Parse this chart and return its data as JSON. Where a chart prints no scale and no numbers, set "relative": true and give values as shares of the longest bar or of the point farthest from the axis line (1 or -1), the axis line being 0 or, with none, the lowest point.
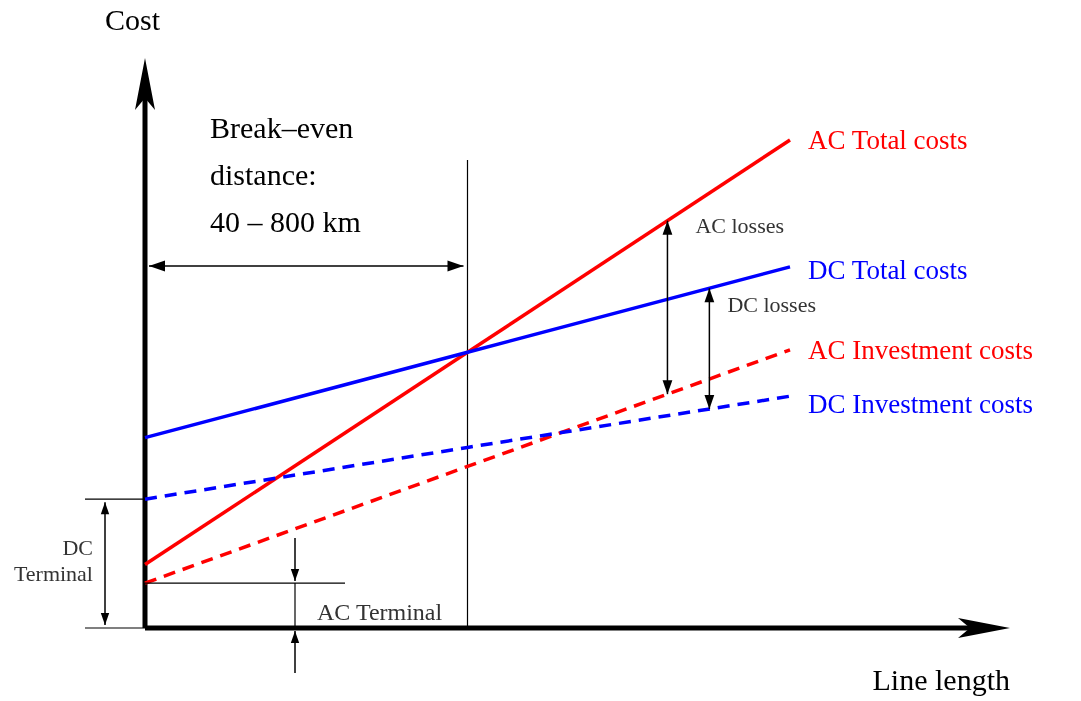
{
  "chart_data": {
    "type": "line",
    "xlabel": "Line length",
    "ylabel": "Cost",
    "relative": true,
    "legend": false,
    "categories": [
      null,
      null,
      null
    ],
    "series": [
      {
        "name": "AC Total costs",
        "color": "#ff0000",
        "line_style": "solid",
        "values": [
          0.13,
          0.565,
          1
        ]
      },
      {
        "name": "DC Total costs",
        "color": "#0000ff",
        "line_style": "solid",
        "values": [
          0.39,
          0.565,
          0.74
        ]
      },
      {
        "name": "AC Investment costs",
        "color": "#ff0000",
        "line_style": "dashed",
        "values": [
          0.092,
          0.331,
          0.57
        ]
      },
      {
        "name": "DC Investment costs",
        "color": "#0000ff",
        "line_style": "dashed",
        "values": [
          0.264,
          0.37,
          0.475
        ]
      }
    ],
    "annotations": [
      "Break–even\ndistance:\n40 – 800 km",
      "AC losses",
      "DC losses",
      "AC Terminal",
      "DC\nTerminal"
    ]
  }
}
